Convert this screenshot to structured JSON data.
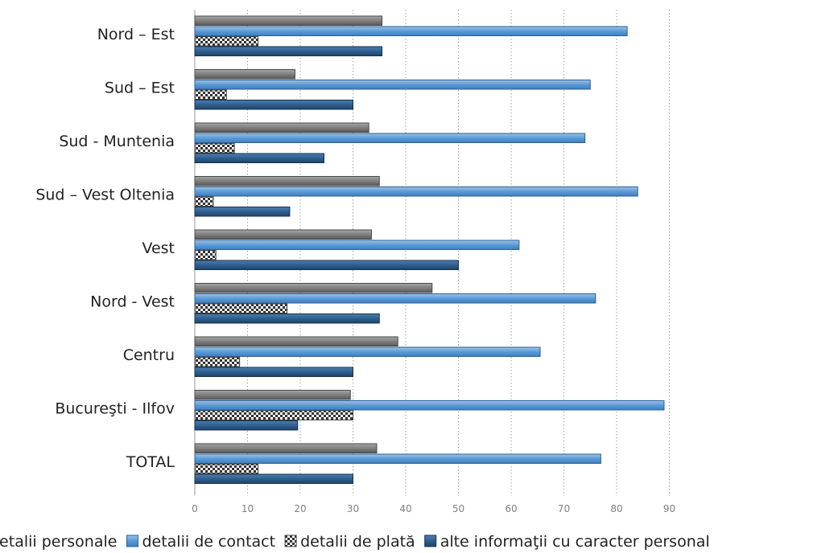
{
  "chart_data": {
    "type": "bar",
    "orientation": "horizontal",
    "categories": [
      "Nord – Est",
      "Sud – Est",
      "Sud - Muntenia",
      "Sud – Vest Oltenia",
      "Vest",
      "Nord - Vest",
      "Centru",
      "Bucureşti - Ilfov",
      "TOTAL"
    ],
    "series": [
      {
        "name": "detalii personale",
        "color": "#7a7a7a",
        "pattern": "solid-gray",
        "values": [
          35.5,
          19,
          33,
          35,
          33.5,
          45,
          38.5,
          29.5,
          34.5
        ]
      },
      {
        "name": "detalii de contact",
        "color": "#5b9bd5",
        "pattern": "solid-light-blue",
        "values": [
          82,
          75,
          74,
          84,
          61.5,
          76,
          65.5,
          89,
          77
        ]
      },
      {
        "name": "detalii de plată",
        "color": "#333333",
        "pattern": "checkerboard",
        "values": [
          12,
          6,
          7.5,
          3.5,
          4,
          17.5,
          8.5,
          30,
          12
        ]
      },
      {
        "name": "alte informaţii cu caracter personal",
        "color": "#2e5f8f",
        "pattern": "solid-dark-blue",
        "values": [
          35.5,
          30,
          24.5,
          18,
          50,
          35,
          30,
          19.5,
          30
        ]
      }
    ],
    "xlim": [
      0,
      90
    ],
    "xticks": [
      "0",
      "10",
      "20",
      "30",
      "40",
      "50",
      "60",
      "70",
      "80",
      "90"
    ],
    "grid": "vertical-dotted",
    "legend_position": "bottom",
    "title": "",
    "xlabel": "",
    "ylabel": ""
  }
}
